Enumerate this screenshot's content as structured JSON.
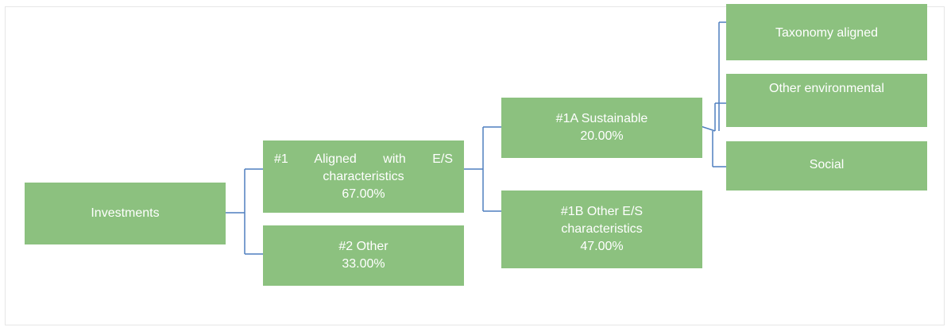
{
  "nodes": [
    {
      "label": "Investments"
    },
    {
      "label": "#1 Aligned with E/S characteristics",
      "value": "67.00%"
    },
    {
      "label": "#2 Other",
      "value": "33.00%"
    },
    {
      "label": "#1A Sustainable",
      "value": "20.00%"
    },
    {
      "label": "#1B Other E/S characteristics",
      "value": "47.00%"
    },
    {
      "label": "Taxonomy aligned"
    },
    {
      "label": "Other environmental"
    },
    {
      "label": "Social"
    }
  ]
}
